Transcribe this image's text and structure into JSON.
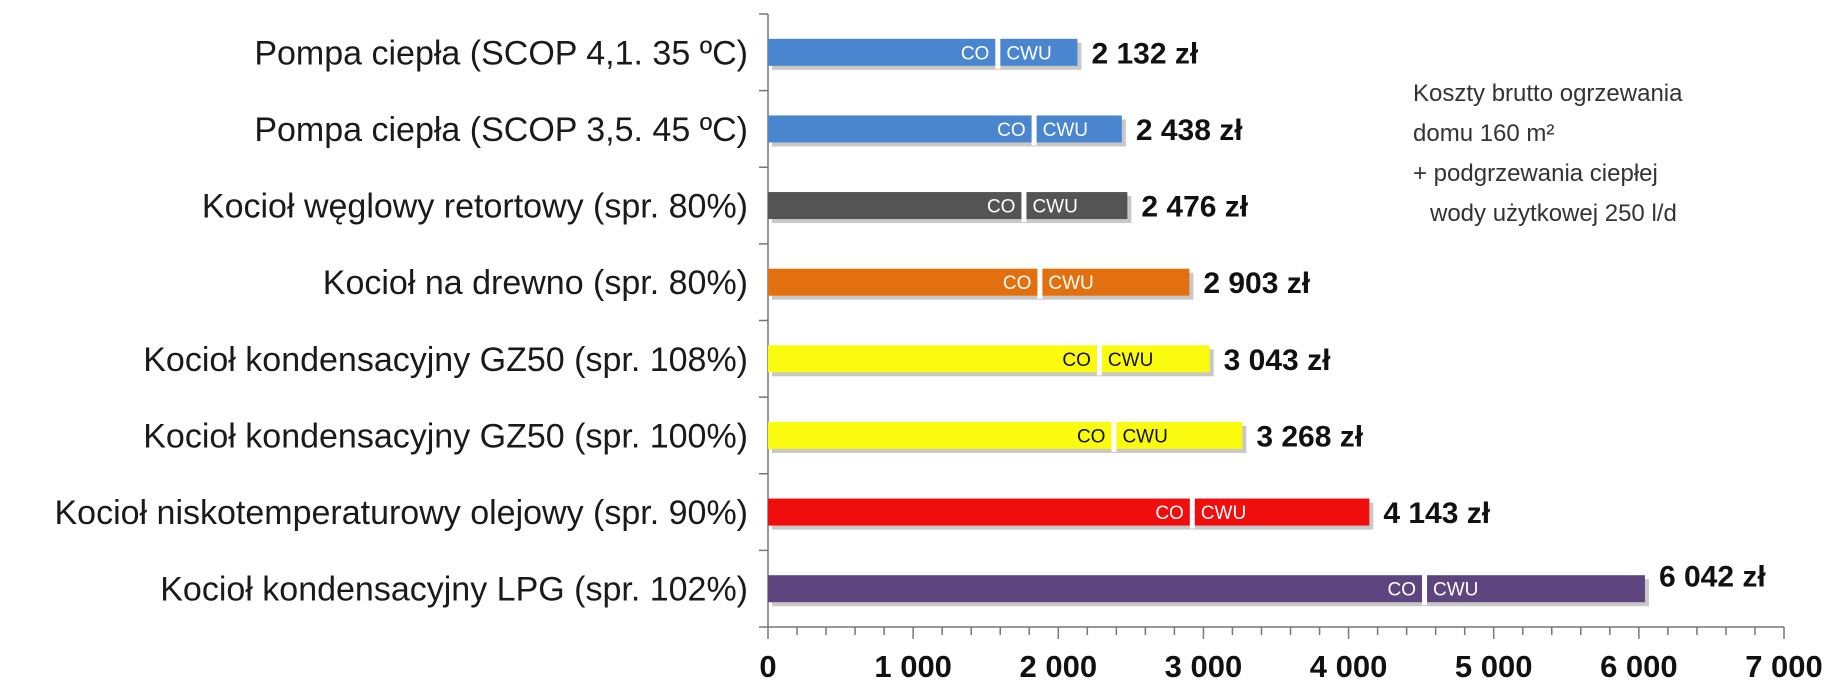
{
  "chart_data": {
    "type": "bar",
    "orientation": "horizontal",
    "stacked": true,
    "categories": [
      "Pompa ciepła (SCOP 4,1. 35 ºC)",
      "Pompa ciepła (SCOP 3,5. 45 ºC)",
      "Kocioł węglowy retortowy (spr. 80%)",
      "Kocioł na drewno (spr. 80%)",
      "Kocioł kondensacyjny GZ50  (spr. 108%)",
      "Kocioł kondensacyjny GZ50  (spr. 100%)",
      "Kocioł niskotemperaturowy olejowy (spr. 90%)",
      "Kocioł kondensacyjny LPG (spr. 102%)"
    ],
    "series": [
      {
        "name": "CO",
        "values": [
          1580,
          1830,
          1760,
          1870,
          2280,
          2380,
          2920,
          4520
        ]
      },
      {
        "name": "CWU",
        "values": [
          552,
          608,
          716,
          1033,
          763,
          888,
          1223,
          1522
        ]
      }
    ],
    "totals": [
      2132,
      2438,
      2476,
      2903,
      3043,
      3268,
      4143,
      6042
    ],
    "total_labels": [
      "2 132 zł",
      "2 438 zł",
      "2 476 zł",
      "2 903 zł",
      "3 043 zł",
      "3 268 zł",
      "4 143 zł",
      "6 042 zł"
    ],
    "bar_colors": [
      "#4a86d0",
      "#4a86d0",
      "#545454",
      "#e2700e",
      "#fbfb10",
      "#fbfb10",
      "#f20d0d",
      "#5f4580"
    ],
    "segment_text_colors": [
      "#ffffff",
      "#ffffff",
      "#ffffff",
      "#ffffff",
      "#111111",
      "#111111",
      "#ffffff",
      "#ffffff"
    ],
    "xlim": [
      0,
      7000
    ],
    "x_ticks": [
      0,
      1000,
      2000,
      3000,
      4000,
      5000,
      6000,
      7000
    ],
    "x_tick_labels": [
      "0",
      "1 000",
      "2 000",
      "3 000",
      "4 000",
      "5 000",
      "6 000",
      "7 000"
    ],
    "grid": false,
    "xlabel": "",
    "ylabel": ""
  },
  "note": {
    "lines": [
      "Koszty brutto ogrzewania",
      "domu 160 m²",
      "+ podgrzewania ciepłej",
      "wody użytkowej 250 l/d"
    ]
  }
}
